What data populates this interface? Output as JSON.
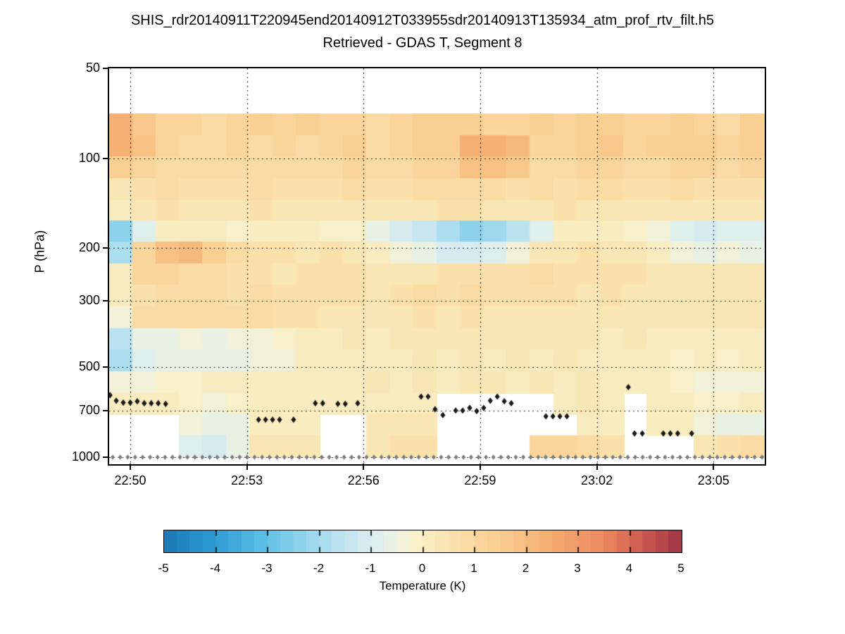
{
  "titles": {
    "line1": "SHIS_rdr20140911T220945end20140912T033955sdr20140913T135934_atm_prof_rtv_filt.h5",
    "line2": "Retrieved - GDAS T, Segment 8"
  },
  "axes": {
    "ylabel": "P (hPa)",
    "x_range_minutes_after_2200": [
      49.457,
      66.3
    ],
    "y_range_hpa": [
      50,
      1050
    ],
    "x_ticks": [
      {
        "t": 50,
        "label": "22:50"
      },
      {
        "t": 53,
        "label": "22:53"
      },
      {
        "t": 56,
        "label": "22:56"
      },
      {
        "t": 59,
        "label": "22:59"
      },
      {
        "t": 62,
        "label": "23:02"
      },
      {
        "t": 65,
        "label": "23:05"
      }
    ],
    "y_ticks": [
      {
        "p": 50,
        "label": "50"
      },
      {
        "p": 100,
        "label": "100"
      },
      {
        "p": 200,
        "label": "200"
      },
      {
        "p": 300,
        "label": "300"
      },
      {
        "p": 500,
        "label": "500"
      },
      {
        "p": 700,
        "label": "700"
      },
      {
        "p": 1000,
        "label": "1000"
      }
    ],
    "grid_pressures": [
      100,
      200,
      300,
      500,
      700,
      1000
    ],
    "grid_style": "dotted"
  },
  "colorbar": {
    "label": "Temperature (K)",
    "range": [
      -5,
      5
    ],
    "ticks": [
      -5,
      -4,
      -3,
      -2,
      -1,
      0,
      1,
      2,
      3,
      4,
      5
    ],
    "n_steps": 40,
    "stops": [
      {
        "v": -5.0,
        "color": "#1971b0"
      },
      {
        "v": -4.0,
        "color": "#2a97d1"
      },
      {
        "v": -3.0,
        "color": "#5abde3"
      },
      {
        "v": -2.0,
        "color": "#9ed8ee"
      },
      {
        "v": -1.0,
        "color": "#d5ebef"
      },
      {
        "v": -0.4,
        "color": "#ebf2e2"
      },
      {
        "v": 0.0,
        "color": "#f7f0c8"
      },
      {
        "v": 0.8,
        "color": "#fae0aa"
      },
      {
        "v": 1.6,
        "color": "#f9cd8f"
      },
      {
        "v": 2.6,
        "color": "#f5ae71"
      },
      {
        "v": 3.6,
        "color": "#ec8960"
      },
      {
        "v": 4.4,
        "color": "#cb5950"
      },
      {
        "v": 5.0,
        "color": "#a73a47"
      }
    ]
  },
  "markers": {
    "cloud_marker_color": "#1a1a1a",
    "surface_marker_color": "#7d7d7d",
    "cloud_markers_t_p": [
      [
        49.48,
        620
      ],
      [
        49.64,
        647
      ],
      [
        49.82,
        657
      ],
      [
        50.0,
        657
      ],
      [
        50.18,
        650
      ],
      [
        50.36,
        660
      ],
      [
        50.54,
        660
      ],
      [
        50.72,
        660
      ],
      [
        50.91,
        663
      ],
      [
        53.3,
        749
      ],
      [
        53.48,
        749
      ],
      [
        53.66,
        749
      ],
      [
        53.84,
        749
      ],
      [
        54.2,
        749
      ],
      [
        54.76,
        660
      ],
      [
        54.95,
        660
      ],
      [
        55.34,
        663
      ],
      [
        55.53,
        663
      ],
      [
        55.85,
        660
      ],
      [
        57.48,
        627
      ],
      [
        57.66,
        627
      ],
      [
        57.84,
        691
      ],
      [
        58.04,
        723
      ],
      [
        58.37,
        698
      ],
      [
        58.55,
        698
      ],
      [
        58.73,
        684
      ],
      [
        58.91,
        701
      ],
      [
        59.09,
        684
      ],
      [
        59.26,
        647
      ],
      [
        59.44,
        627
      ],
      [
        59.62,
        650
      ],
      [
        59.8,
        660
      ],
      [
        60.69,
        730
      ],
      [
        60.87,
        730
      ],
      [
        61.05,
        730
      ],
      [
        61.23,
        730
      ],
      [
        62.81,
        583
      ],
      [
        62.97,
        833
      ],
      [
        63.17,
        833
      ],
      [
        63.71,
        833
      ],
      [
        63.89,
        833
      ],
      [
        64.08,
        833
      ],
      [
        64.44,
        833
      ]
    ],
    "surface_markers": {
      "pressure": 1000,
      "t_start": 49.55,
      "t_end": 66.25,
      "count": 88
    }
  },
  "chart_data": {
    "type": "heatmap",
    "value_units": "K",
    "x_units": "time (HH:MM after 22:00, minutes)",
    "x_start_minutes": 49.457,
    "x_end_minutes": 66.3,
    "n_columns": 28,
    "pressure_edges_hpa": [
      71,
      84,
      99,
      117,
      138,
      162,
      191,
      226,
      266,
      314,
      371,
      437,
      516,
      609,
      718,
      847,
      1000
    ],
    "values": [
      [
        2.6,
        1.8,
        1.3,
        1.2,
        1.1,
        1.3,
        1.4,
        1.2,
        1.5,
        1.3,
        1.2,
        1.1,
        1.3,
        1.5,
        1.6,
        1.4,
        1.2,
        1.3,
        1.5,
        1.2,
        1.4,
        1.6,
        1.3,
        1.2,
        1.5,
        1.3,
        1.1,
        1.4
      ],
      [
        2.6,
        2.1,
        1.2,
        1.0,
        1.1,
        1.2,
        1.0,
        1.3,
        1.1,
        1.2,
        1.4,
        1.1,
        1.2,
        1.4,
        1.6,
        2.4,
        2.6,
        2.2,
        1.3,
        1.2,
        1.4,
        1.7,
        1.3,
        1.5,
        1.6,
        1.4,
        1.2,
        1.5
      ],
      [
        1.6,
        1.3,
        1.0,
        0.9,
        1.0,
        1.1,
        0.9,
        1.0,
        1.0,
        1.1,
        1.2,
        0.9,
        1.0,
        1.2,
        1.2,
        1.9,
        2.0,
        1.7,
        1.1,
        1.0,
        1.2,
        1.3,
        1.0,
        1.1,
        1.3,
        1.2,
        1.0,
        1.2
      ],
      [
        0.5,
        0.8,
        0.9,
        0.8,
        0.7,
        0.8,
        0.9,
        0.8,
        0.7,
        0.8,
        0.9,
        0.8,
        0.7,
        0.9,
        1.1,
        1.0,
        0.9,
        0.8,
        0.9,
        0.8,
        0.9,
        1.0,
        0.8,
        0.7,
        0.9,
        0.8,
        0.7,
        0.8
      ],
      [
        0.3,
        0.6,
        0.7,
        0.6,
        0.5,
        0.6,
        0.7,
        0.6,
        0.5,
        0.6,
        0.5,
        0.4,
        0.5,
        0.6,
        0.8,
        0.7,
        0.6,
        0.5,
        0.6,
        0.7,
        0.6,
        0.5,
        0.4,
        0.5,
        0.6,
        0.5,
        0.4,
        0.5
      ],
      [
        -2.2,
        -0.8,
        0.2,
        0.3,
        0.2,
        0.1,
        0.2,
        0.3,
        0.2,
        0.1,
        0.0,
        -0.5,
        -0.9,
        -1.3,
        -1.8,
        -2.3,
        -2.1,
        -1.5,
        -0.8,
        0.2,
        0.3,
        0.2,
        0.1,
        -0.3,
        -0.7,
        -0.9,
        -0.7,
        -0.8
      ],
      [
        -1.8,
        1.2,
        2.0,
        2.2,
        1.6,
        1.0,
        0.8,
        0.7,
        0.6,
        0.7,
        0.6,
        0.2,
        -0.3,
        -0.6,
        -0.9,
        -1.0,
        -0.7,
        -0.3,
        0.5,
        0.6,
        0.7,
        0.6,
        0.5,
        0.2,
        -0.2,
        -0.4,
        -0.3,
        -0.4
      ],
      [
        0.2,
        1.2,
        1.3,
        1.1,
        0.9,
        0.8,
        0.7,
        0.6,
        0.7,
        0.8,
        0.7,
        0.6,
        0.5,
        0.6,
        0.7,
        0.8,
        0.7,
        0.8,
        0.9,
        0.8,
        0.7,
        0.8,
        0.7,
        0.6,
        0.5,
        0.6,
        0.5,
        0.6
      ],
      [
        0.3,
        0.8,
        0.9,
        1.0,
        0.9,
        0.8,
        0.9,
        0.8,
        0.7,
        0.8,
        0.7,
        0.6,
        0.8,
        0.9,
        0.8,
        0.9,
        0.8,
        0.7,
        0.8,
        0.7,
        0.6,
        0.7,
        0.5,
        0.4,
        0.5,
        0.6,
        0.5,
        0.4
      ],
      [
        -0.3,
        1.0,
        1.1,
        1.0,
        0.9,
        1.0,
        0.9,
        0.8,
        0.7,
        0.6,
        0.5,
        0.5,
        0.6,
        0.7,
        0.6,
        0.7,
        0.6,
        0.5,
        0.6,
        0.5,
        0.6,
        0.5,
        0.4,
        0.5,
        0.6,
        0.5,
        0.4,
        0.5
      ],
      [
        -1.5,
        -0.6,
        -0.4,
        -0.3,
        -0.4,
        -0.3,
        -0.2,
        0.0,
        0.2,
        0.3,
        0.4,
        0.3,
        0.4,
        0.5,
        0.4,
        0.5,
        0.4,
        0.5,
        0.4,
        0.5,
        0.4,
        0.3,
        0.4,
        0.3,
        0.2,
        0.3,
        0.2,
        0.3
      ],
      [
        -1.8,
        -0.8,
        -0.6,
        -0.5,
        -0.4,
        -0.5,
        -0.3,
        -0.2,
        0.2,
        0.3,
        0.3,
        0.2,
        0.3,
        0.4,
        0.3,
        0.4,
        0.3,
        0.4,
        0.3,
        0.4,
        0.3,
        0.2,
        0.3,
        0.2,
        0.1,
        0.2,
        0.1,
        0.2
      ],
      [
        -0.3,
        -0.2,
        -0.1,
        0.0,
        0.2,
        0.3,
        0.2,
        0.3,
        0.3,
        0.2,
        0.3,
        0.4,
        0.3,
        0.4,
        0.3,
        0.4,
        0.4,
        0.3,
        0.4,
        0.3,
        0.4,
        0.3,
        0.2,
        0.3,
        0.0,
        -0.2,
        -0.3,
        -0.2
      ],
      [
        0.3,
        0.3,
        0.2,
        0.1,
        -0.2,
        0.1,
        0.3,
        0.3,
        0.2,
        0.3,
        0.2,
        0.3,
        0.3,
        0.3,
        null,
        null,
        null,
        null,
        null,
        0.3,
        0.4,
        0.3,
        null,
        0.3,
        0.2,
        0.1,
        0.0,
        0.2
      ],
      [
        null,
        null,
        null,
        -0.3,
        -0.5,
        -0.4,
        0.2,
        0.3,
        0.2,
        null,
        null,
        0.4,
        0.5,
        0.4,
        null,
        null,
        null,
        null,
        null,
        null,
        0.3,
        0.2,
        null,
        0.3,
        0.3,
        -0.2,
        -0.4,
        -0.5
      ],
      [
        null,
        null,
        null,
        -0.8,
        -1.0,
        -0.6,
        0.4,
        0.5,
        0.6,
        null,
        null,
        0.6,
        0.8,
        0.7,
        null,
        null,
        null,
        null,
        1.2,
        1.2,
        1.0,
        0.8,
        null,
        null,
        null,
        0.6,
        0.8,
        0.9
      ]
    ]
  }
}
